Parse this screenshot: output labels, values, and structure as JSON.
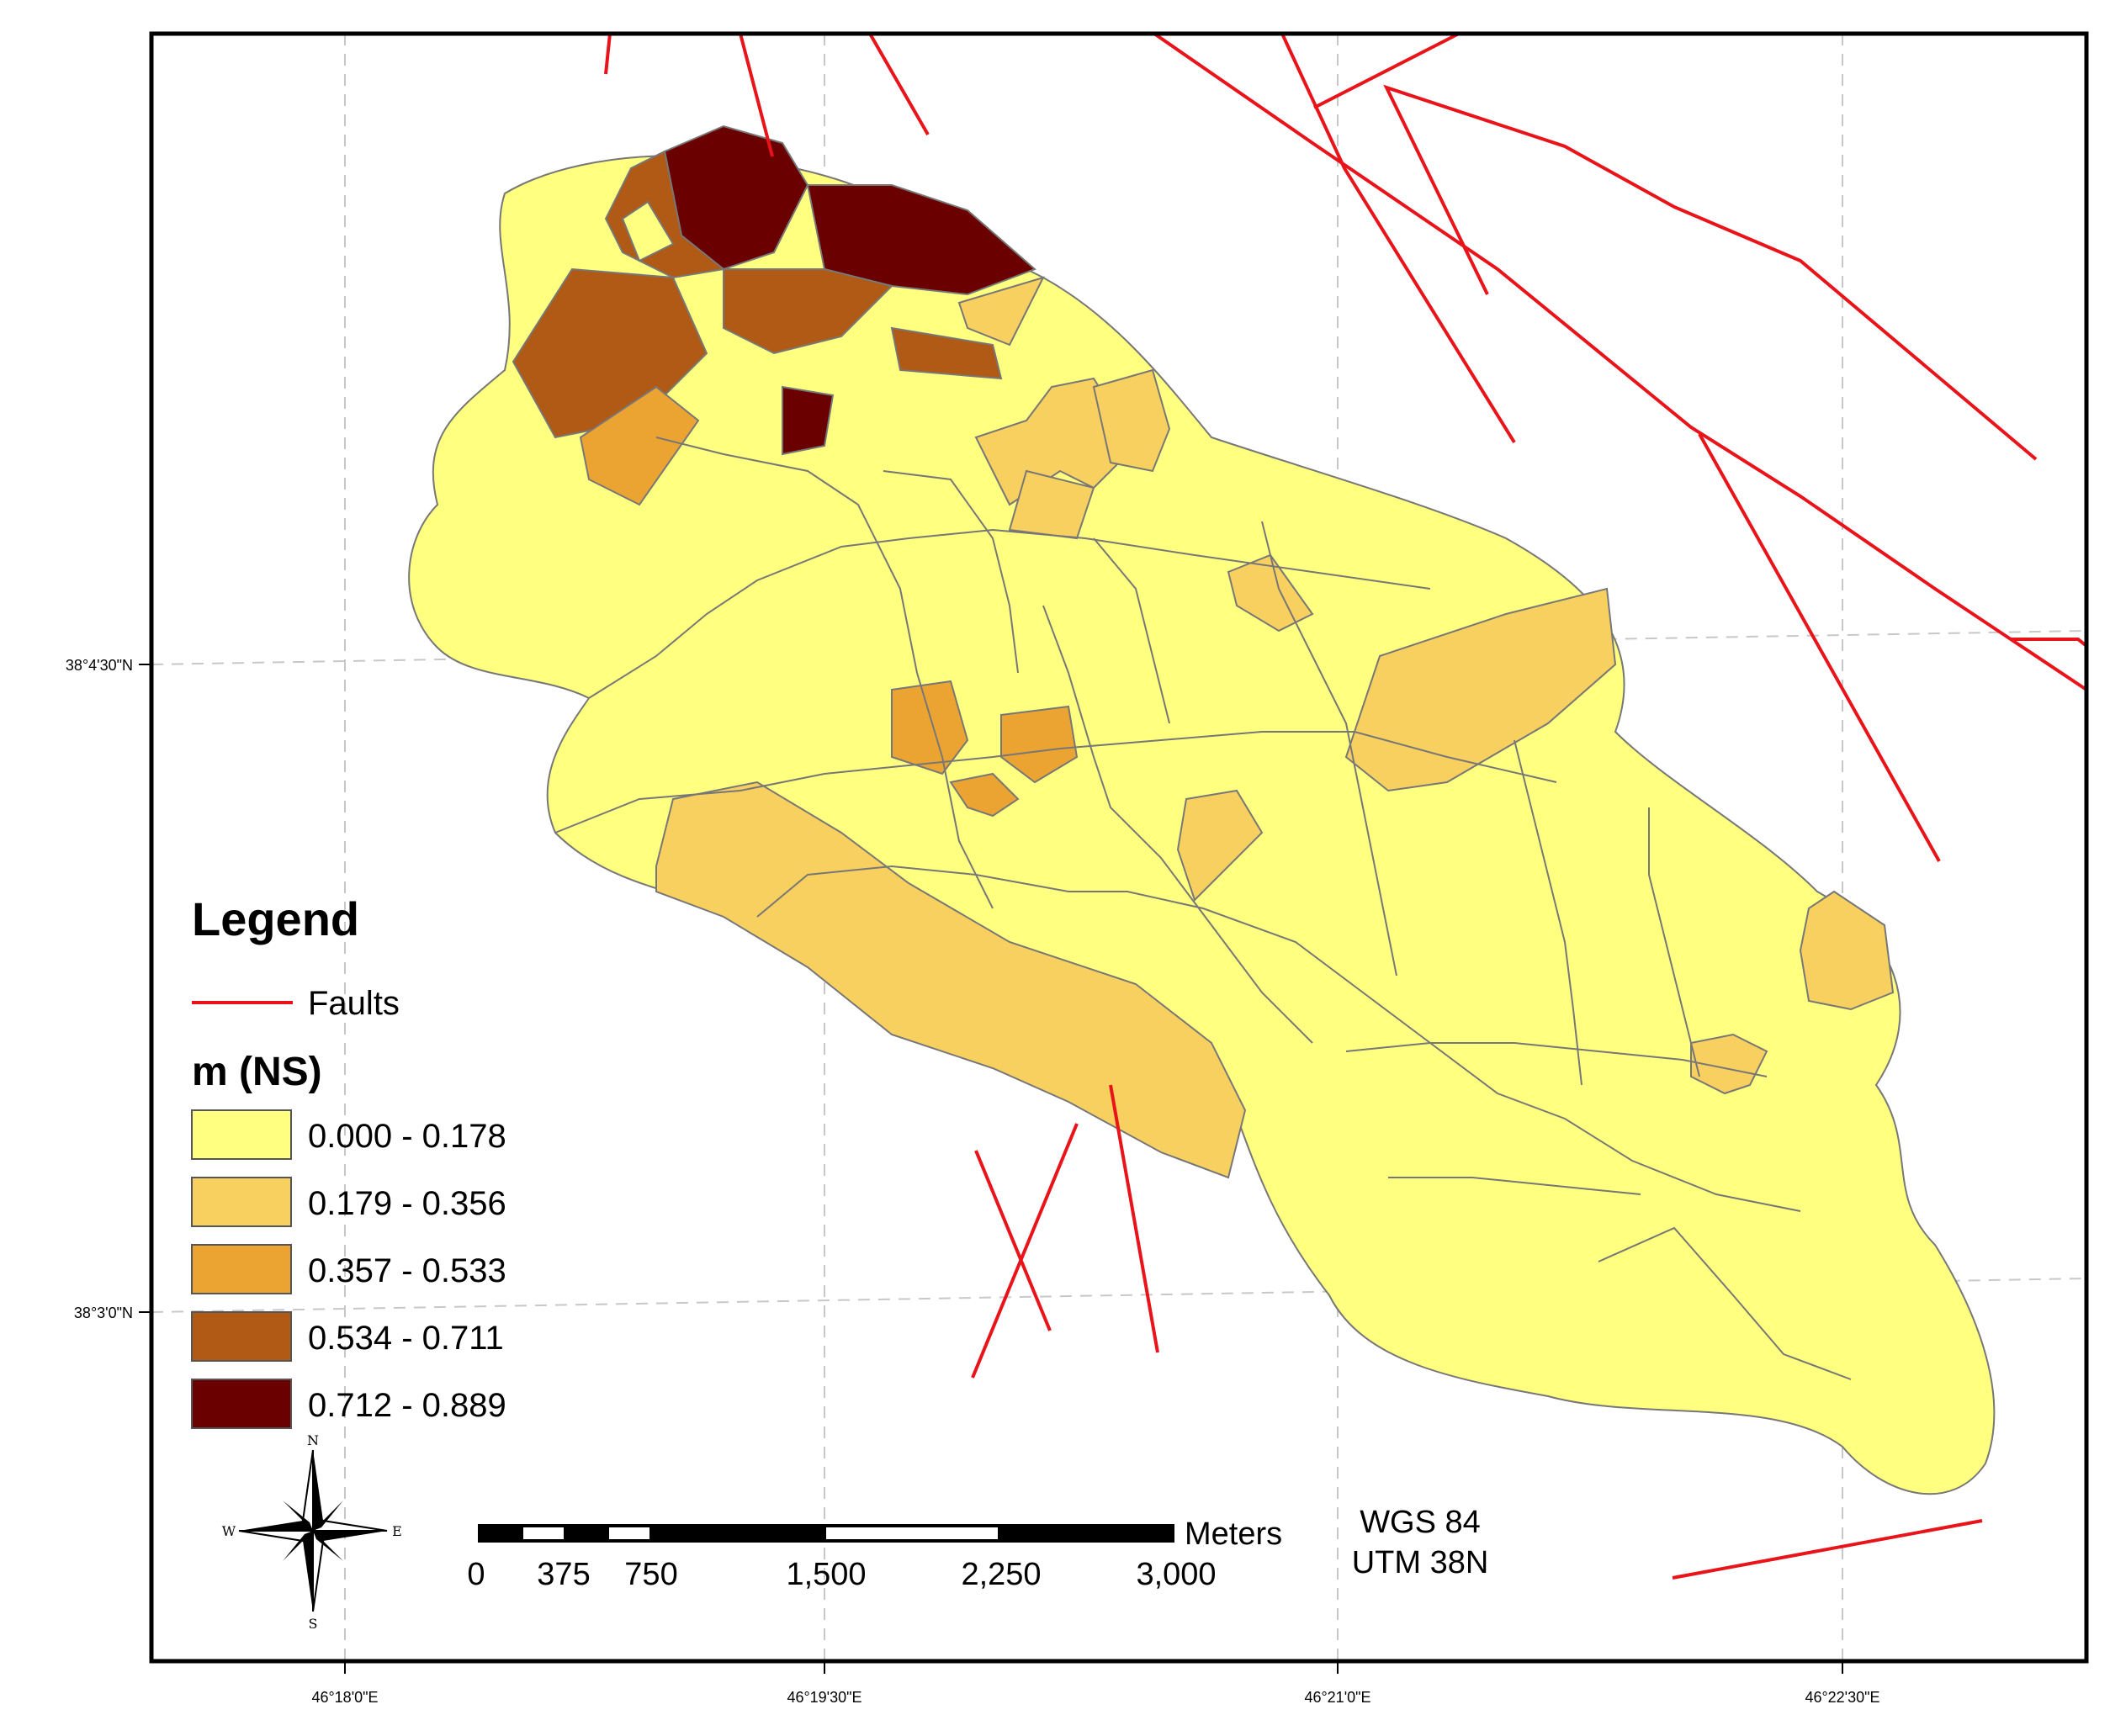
{
  "legend": {
    "title": "Legend",
    "faults_label": "Faults",
    "field_title": "m (NS)",
    "classes": [
      {
        "label": "0.000 - 0.178",
        "color": "#ffff80"
      },
      {
        "label": "0.179 - 0.356",
        "color": "#f8d060"
      },
      {
        "label": "0.357 - 0.533",
        "color": "#eba432"
      },
      {
        "label": "0.534 - 0.711",
        "color": "#b05a16"
      },
      {
        "label": "0.712 - 0.889",
        "color": "#6b0000"
      }
    ],
    "fault_color": "#e8141a"
  },
  "axes": {
    "lat_labels": [
      "38°4'30\"N",
      "38°3'0\"N"
    ],
    "lon_labels": [
      "46°18'0\"E",
      "46°19'30\"E",
      "46°21'0\"E",
      "46°22'30\"E"
    ]
  },
  "scalebar": {
    "unit": "Meters",
    "ticks": [
      "0",
      "375",
      "750",
      "1,500",
      "2,250",
      "3,000"
    ]
  },
  "crs": {
    "datum": "WGS 84",
    "projection": "UTM 38N"
  },
  "compass": {
    "n": "N",
    "s": "S",
    "w": "W",
    "e": "E"
  }
}
